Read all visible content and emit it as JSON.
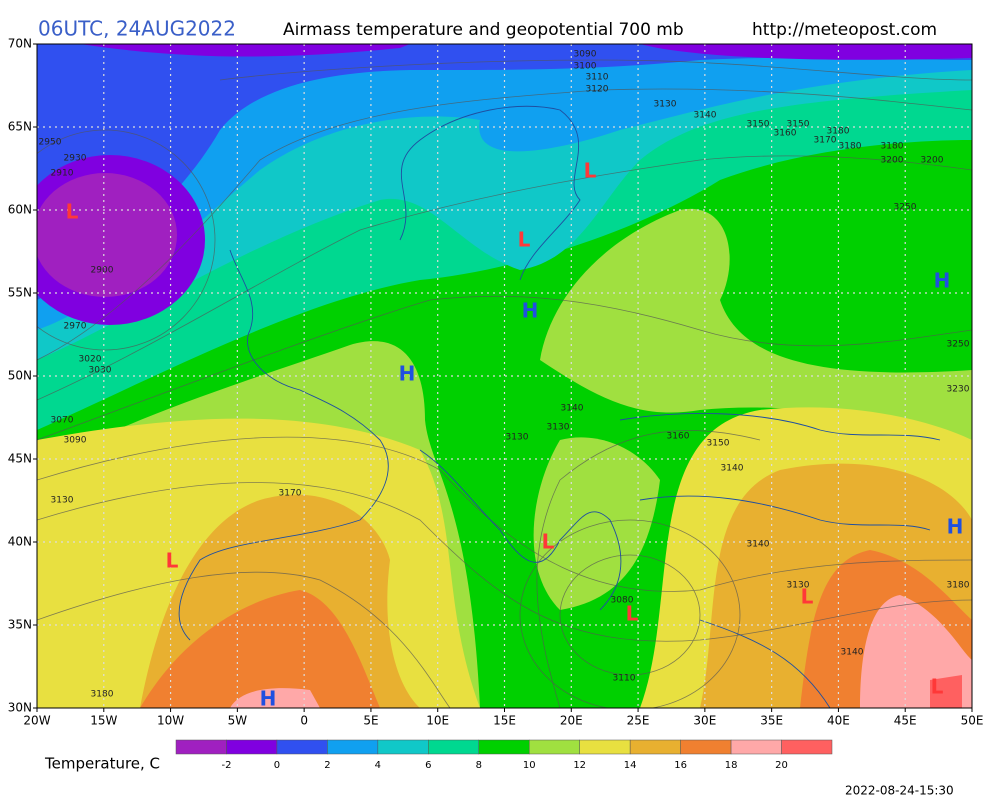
{
  "header": {
    "time": "06UTC, 24AUG2022",
    "title": "Airmass temperature and geopotential 700 mb",
    "url": "http://meteopost.com"
  },
  "axes": {
    "longitudes": [
      "20W",
      "15W",
      "10W",
      "5W",
      "0",
      "5E",
      "10E",
      "15E",
      "20E",
      "25E",
      "30E",
      "35E",
      "40E",
      "45E",
      "50E"
    ],
    "latitudes": [
      "30N",
      "35N",
      "40N",
      "45N",
      "50N",
      "55N",
      "60N",
      "65N",
      "70N"
    ]
  },
  "pressure_systems": [
    "L",
    "L",
    "L",
    "L",
    "L",
    "L",
    "L",
    "L",
    "H",
    "H",
    "H",
    "H",
    "H"
  ],
  "contour_labels": [
    "3090",
    "3100",
    "3110",
    "3120",
    "3130",
    "3140",
    "3150",
    "3160",
    "3150",
    "3170",
    "3180",
    "3180",
    "3180",
    "3200",
    "3200",
    "3250",
    "2950",
    "2930",
    "2910",
    "2900",
    "2970",
    "3020",
    "3030",
    "3070",
    "3090",
    "3130",
    "3170",
    "3140",
    "3130",
    "3130",
    "3160",
    "3150",
    "3140",
    "3140",
    "3130",
    "3080",
    "3110",
    "3140",
    "3180",
    "3250",
    "3230",
    "3180"
  ],
  "colorbar": {
    "title": "Temperature, C",
    "labels": [
      -2,
      0,
      2,
      4,
      6,
      8,
      10,
      12,
      14,
      16,
      18,
      20
    ],
    "colors": [
      "#a020c0",
      "#8000e0",
      "#3050f0",
      "#10a0f0",
      "#10c8c8",
      "#00d890",
      "#00d000",
      "#a0e040",
      "#e8e040",
      "#e8b030",
      "#f08030",
      "#ffa8a8",
      "#ff6060"
    ]
  },
  "footer": {
    "timestamp": "2022-08-24-15:30"
  }
}
